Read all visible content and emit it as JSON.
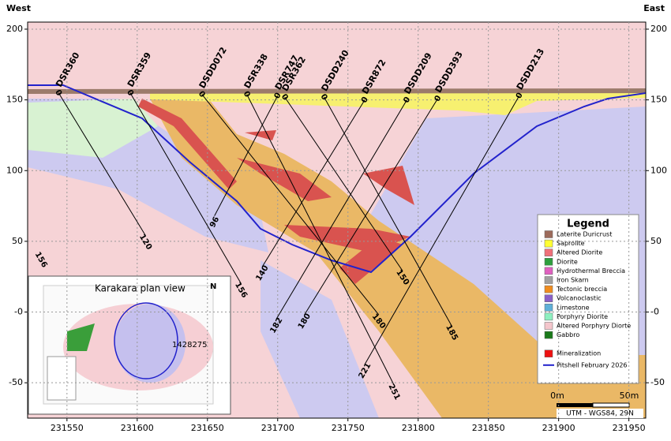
{
  "header": {
    "west": "West",
    "east": "East"
  },
  "chart_data": {
    "type": "section",
    "xlim": [
      231522,
      231962
    ],
    "ylim": [
      -75,
      205
    ],
    "xticks": [
      231550,
      231600,
      231650,
      231700,
      231750,
      231800,
      231850,
      231900,
      231950
    ],
    "yticks": [
      -50,
      {
        "value": 0,
        "label": "-0"
      },
      50,
      100,
      150,
      200
    ],
    "grid": true,
    "hole_color": "#000000",
    "holes": [
      {
        "name": "DSR360",
        "collar": [
          231544,
          155
        ],
        "end": [
          231606,
          54
        ],
        "collar_depth": 0,
        "end_depth": 120
      },
      {
        "name": "DSR359",
        "collar": [
          231595,
          155
        ],
        "end": [
          231674,
          20
        ],
        "collar_depth": 0,
        "end_depth": 156
      },
      {
        "name": "DSDD072",
        "collar": [
          231646,
          154
        ],
        "end": [
          231772,
          -2
        ],
        "collar_depth": 0,
        "end_depth": 180
      },
      {
        "name": "DSR338",
        "collar": [
          231678,
          154
        ],
        "end": [
          231783,
          -52
        ],
        "collar_depth": 0,
        "end_depth": 251
      },
      {
        "name": "DSR747",
        "collar": [
          231700,
          153
        ],
        "end": [
          231655,
          68
        ],
        "collar_depth": 0,
        "end_depth": 96
      },
      {
        "name": "DSR362",
        "collar": [
          231705,
          152
        ],
        "end": [
          231789,
          29
        ],
        "collar_depth": 0,
        "end_depth": 150
      },
      {
        "name": "DSDD240",
        "collar": [
          231733,
          152
        ],
        "end": [
          231824,
          -10
        ],
        "collar_depth": 0,
        "end_depth": 185
      },
      {
        "name": "DSR872",
        "collar": [
          231762,
          150
        ],
        "end": [
          231689,
          32
        ],
        "collar_depth": 0,
        "end_depth": 140
      },
      {
        "name": "DSDD209",
        "collar": [
          231792,
          150
        ],
        "end": [
          231699,
          -5
        ],
        "collar_depth": 0,
        "end_depth": 182
      },
      {
        "name": "DSDD393",
        "collar": [
          231814,
          151
        ],
        "end": [
          231719,
          -2
        ],
        "collar_depth": 0,
        "end_depth": 180
      },
      {
        "name": "DSDD213",
        "collar": [
          231872,
          153
        ],
        "end": [
          231762,
          -37
        ],
        "collar_depth": 0,
        "end_depth": 221
      }
    ],
    "extra_labels": [
      {
        "value": 156,
        "x": 231526,
        "y": 37
      }
    ],
    "legend": {
      "title": "Legend",
      "items": [
        {
          "name": "Laterite Duricrust",
          "color": "#9c6b5b"
        },
        {
          "name": "Saprolite",
          "color": "#ffff33"
        },
        {
          "name": "Altered Diorite",
          "color": "#f0707a"
        },
        {
          "name": "Diorite",
          "color": "#2e9e3e"
        },
        {
          "name": "Hydrothermal Breccia",
          "color": "#e060c0"
        },
        {
          "name": "Iron Skarn",
          "color": "#a0a0a0"
        },
        {
          "name": "Tectonic breccia",
          "color": "#f08c1e"
        },
        {
          "name": "Volcanoclastic",
          "color": "#8a60c8"
        },
        {
          "name": "Limestone",
          "color": "#5fb0d8"
        },
        {
          "name": "Porphyry Diorite",
          "color": "#8ef0c0"
        },
        {
          "name": "Altered Porphyry Diorte",
          "color": "#f4c6cc"
        },
        {
          "name": "Gabbro",
          "color": "#1a7a1a"
        },
        {
          "name": "Mineralization",
          "color": "#ee1111"
        }
      ],
      "pitshell": {
        "name": "Pitshell February 2026",
        "color": "#2222cc"
      }
    }
  },
  "inset": {
    "title": "Karakara plan view",
    "label": "1428275",
    "north": "N"
  },
  "scale": {
    "start": "0m",
    "end": "50m",
    "crs": "UTM - WGS84, 29N"
  }
}
